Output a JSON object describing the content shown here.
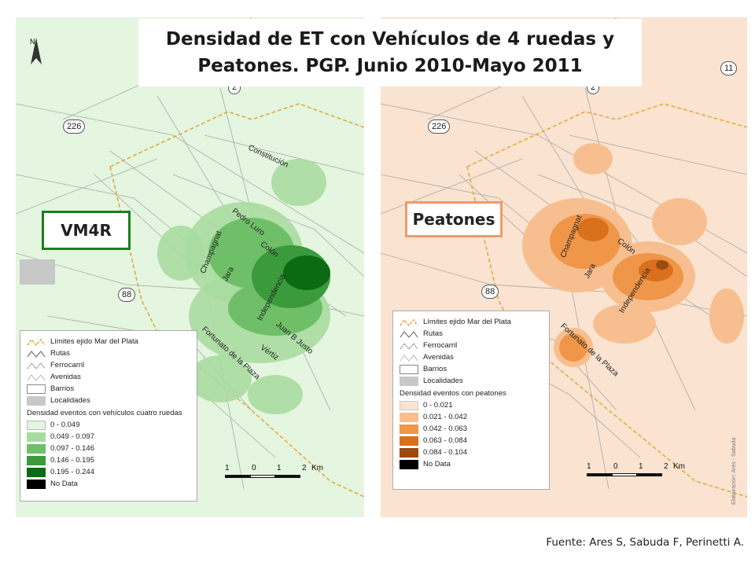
{
  "title": {
    "line1": "Densidad de ET con  Vehículos de 4 ruedas y",
    "line2": "Peatones. PGP. Junio 2010-Mayo 2011"
  },
  "tags": {
    "left": "VM4R",
    "right": "Peatones"
  },
  "source": "Fuente: Ares S, Sabuda F, Perinetti A.",
  "north_label": "N",
  "road_badges": {
    "r226": "226",
    "r2": "2",
    "r88": "88",
    "r11": "11"
  },
  "streets": {
    "constitucion": "Constitución",
    "pedro_luro": "Pedro Luro",
    "colon": "Colón",
    "champagnat": "Champagnat",
    "jara": "Jara",
    "independencia": "Independencia",
    "juan_b_justo": "Juan B Justo",
    "vertiz": "Vértiz",
    "fortunato": "Fortunato de la Plaza"
  },
  "legend_common": [
    "Límites ejido Mar del Plata",
    "Rutas",
    "Ferrocarril",
    "Avenidas",
    "Barrios",
    "Localidades"
  ],
  "legend_left": {
    "heading": "Densidad eventos con vehículos cuatro ruedas",
    "classes": [
      "0 - 0.049",
      "0.049 - 0.097",
      "0.097 - 0.146",
      "0.146 - 0.195",
      "0.195 - 0.244",
      "No Data"
    ],
    "colors": [
      "#e4f5e0",
      "#a8dba0",
      "#6fbf68",
      "#3b9a3b",
      "#0c6a14",
      "#000000"
    ]
  },
  "legend_right": {
    "heading": "Densidad eventos con peatones",
    "classes": [
      "0 - 0.021",
      "0.021 - 0.042",
      "0.042 - 0.063",
      "0.063 - 0.084",
      "0.084 - 0.104",
      "No Data"
    ],
    "colors": [
      "#fae3d1",
      "#f7bf90",
      "#ef9648",
      "#d9701c",
      "#9c4a10",
      "#000000"
    ]
  },
  "scale": {
    "labels": [
      "1",
      "0",
      "1",
      "2"
    ],
    "unit": "Km"
  },
  "credit": "Elaboración: Ares - Sabuda"
}
